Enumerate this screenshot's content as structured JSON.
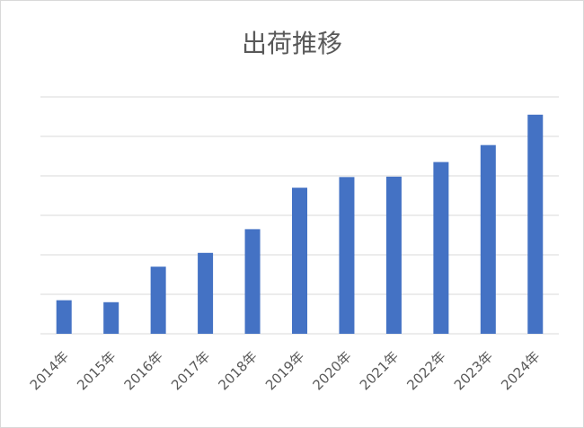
{
  "chart_data": {
    "type": "bar",
    "title": "出荷推移",
    "xlabel": "",
    "ylabel": "",
    "categories": [
      "2014年",
      "2015年",
      "2016年",
      "2017年",
      "2018年",
      "2019年",
      "2020年",
      "2021年",
      "2022年",
      "2023年",
      "2024年"
    ],
    "values": [
      0.85,
      0.8,
      1.7,
      2.05,
      2.65,
      3.7,
      3.97,
      3.98,
      4.35,
      4.78,
      5.55
    ],
    "ylim": [
      0,
      6
    ],
    "y_tick_labels_shown": false,
    "grid": true,
    "legend": "none",
    "bar_color": "#4472C4"
  }
}
